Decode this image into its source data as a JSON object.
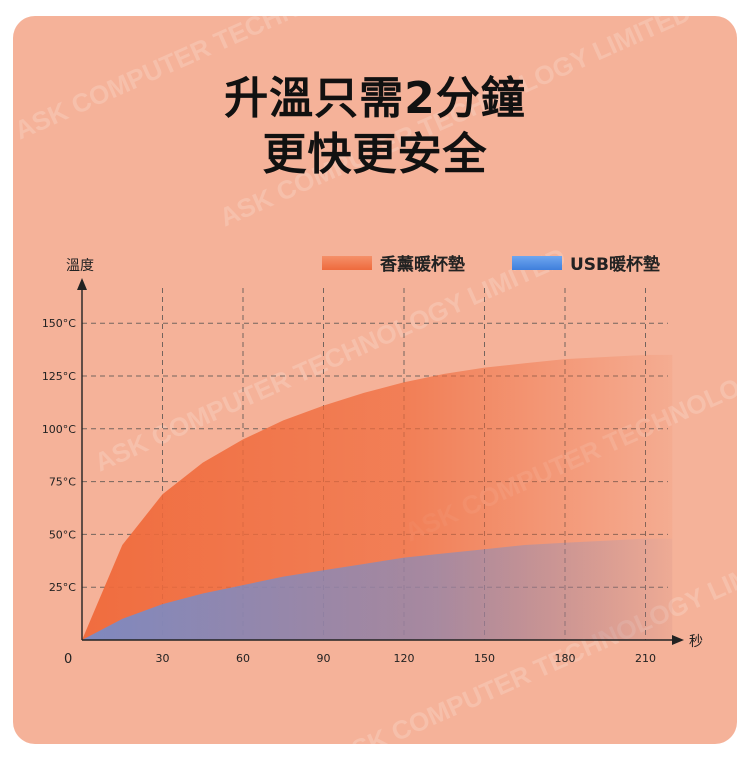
{
  "headline": {
    "line1": "升溫只需2分鐘",
    "line2": "更快更安全"
  },
  "watermark": "ASK COMPUTER TECHNOLOGY LIMITED",
  "colors": {
    "background": "#f5b299",
    "aroma_series": "#f0693a",
    "usb_series": "#6b8ed6",
    "grid": "#555555"
  },
  "chart_data": {
    "type": "area",
    "ylabel": "溫度",
    "xlabel": "秒",
    "origin_label": "0",
    "x_ticks": [
      "30",
      "60",
      "90",
      "120",
      "150",
      "180",
      "210"
    ],
    "y_ticks": [
      "25°C",
      "50°C",
      "75°C",
      "100°C",
      "125°C",
      "150°C"
    ],
    "xlim": [
      0,
      225
    ],
    "ylim": [
      0,
      160
    ],
    "grid": true,
    "legend_position": "top-right",
    "series": [
      {
        "name": "香薰暖杯墊",
        "color": "#f0693a",
        "x": [
          0,
          15,
          30,
          45,
          60,
          75,
          90,
          105,
          120,
          135,
          150,
          165,
          180,
          195,
          210,
          220
        ],
        "values": [
          0,
          45,
          69,
          84,
          95,
          104,
          111,
          117,
          122,
          126,
          129,
          131,
          133,
          134,
          135,
          135
        ]
      },
      {
        "name": "USB暖杯墊",
        "color": "#6b8ed6",
        "x": [
          0,
          15,
          30,
          45,
          60,
          75,
          90,
          105,
          120,
          135,
          150,
          165,
          180,
          195,
          210,
          220
        ],
        "values": [
          0,
          10,
          17,
          22,
          26,
          30,
          33,
          36,
          39,
          41,
          43,
          45,
          46,
          47,
          48,
          48
        ]
      }
    ]
  }
}
